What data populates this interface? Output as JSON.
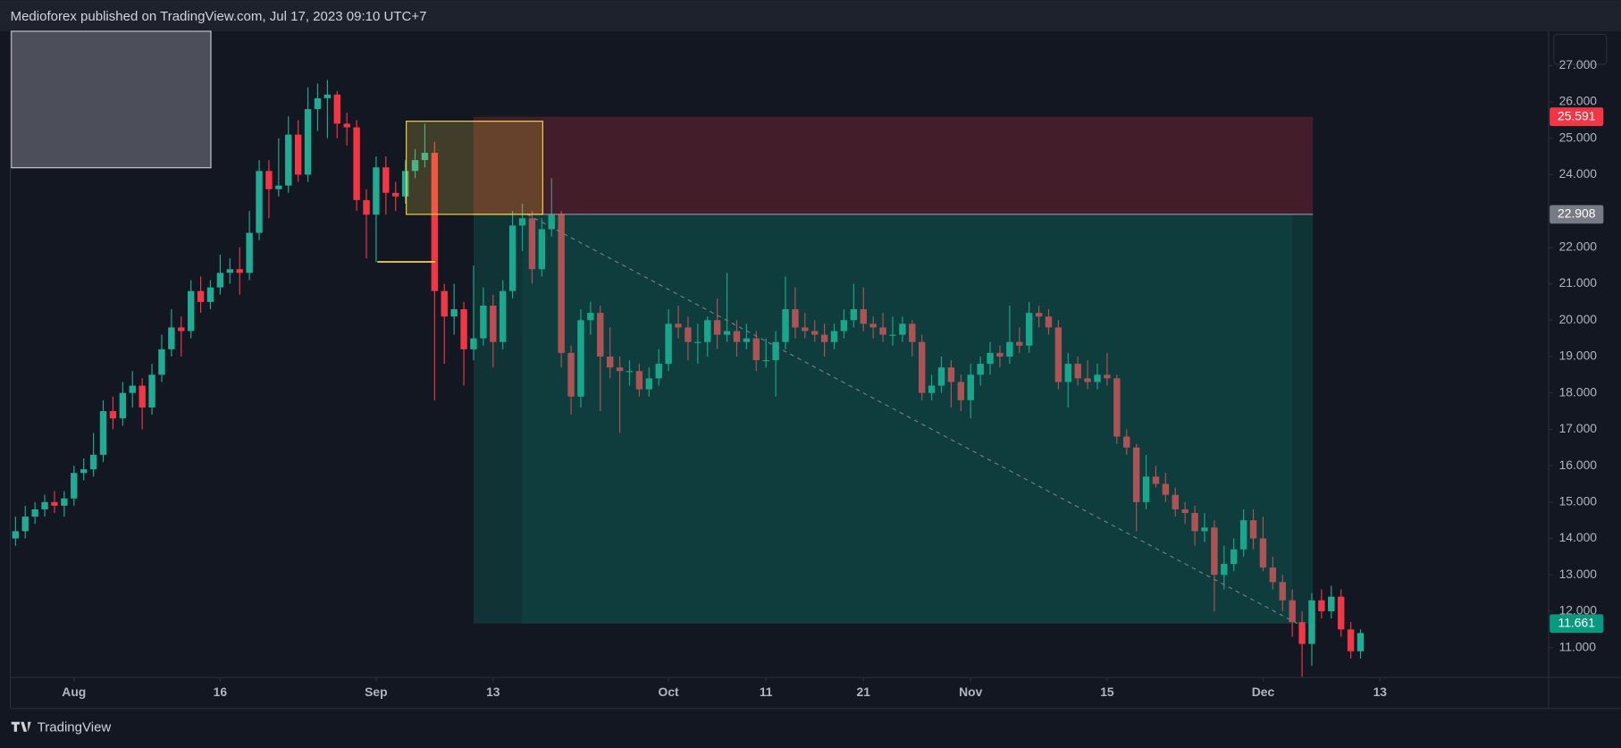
{
  "chart_data": {
    "type": "candlestick",
    "title": "Medioforex published on TradingView.com, Jul 17, 2023 09:10 UTC+7",
    "brand": "TradingView",
    "up_color": "#22ab94",
    "down_color": "#f23645",
    "xlim": [
      -0.53,
      157.3
    ],
    "xticks": [
      {
        "value": 6,
        "label": "Aug"
      },
      {
        "value": 21,
        "label": "16"
      },
      {
        "value": 37,
        "label": "Sep"
      },
      {
        "value": 49,
        "label": "13"
      },
      {
        "value": 67,
        "label": "Oct"
      },
      {
        "value": 77,
        "label": "11"
      },
      {
        "value": 87,
        "label": "21"
      },
      {
        "value": 98,
        "label": "Nov"
      },
      {
        "value": 112,
        "label": "15"
      },
      {
        "value": 128,
        "label": "Dec"
      },
      {
        "value": 140,
        "label": "13"
      }
    ],
    "ylim": [
      10.18,
      27.94
    ],
    "yticks": [
      {
        "value": 11,
        "label": "11.000"
      },
      {
        "value": 12,
        "label": "12.000"
      },
      {
        "value": 13,
        "label": "13.000"
      },
      {
        "value": 14,
        "label": "14.000"
      },
      {
        "value": 15,
        "label": "15.000"
      },
      {
        "value": 16,
        "label": "16.000"
      },
      {
        "value": 17,
        "label": "17.000"
      },
      {
        "value": 18,
        "label": "18.000"
      },
      {
        "value": 19,
        "label": "19.000"
      },
      {
        "value": 20,
        "label": "20.000"
      },
      {
        "value": 21,
        "label": "21.000"
      },
      {
        "value": 22,
        "label": "22.000"
      },
      {
        "value": 23,
        "label": "23.000"
      },
      {
        "value": 24,
        "label": "24.000"
      },
      {
        "value": 25,
        "label": "25.000"
      },
      {
        "value": 26,
        "label": "26.000"
      },
      {
        "value": 27,
        "label": "27.000"
      }
    ],
    "position": {
      "stop": 25.591,
      "entry": 22.908,
      "target": 11.661
    },
    "ohlc": [
      [
        14.0,
        14.6,
        13.8,
        14.2
      ],
      [
        14.2,
        14.9,
        14.0,
        14.6
      ],
      [
        14.6,
        15.0,
        14.4,
        14.8
      ],
      [
        14.8,
        15.2,
        14.6,
        15.0
      ],
      [
        15.0,
        15.3,
        14.7,
        14.9
      ],
      [
        14.9,
        15.3,
        14.6,
        15.1
      ],
      [
        15.1,
        16.0,
        14.9,
        15.8
      ],
      [
        15.8,
        16.2,
        15.6,
        15.9
      ],
      [
        15.9,
        16.9,
        15.7,
        16.3
      ],
      [
        16.3,
        17.8,
        16.1,
        17.5
      ],
      [
        17.5,
        17.9,
        17.0,
        17.3
      ],
      [
        17.3,
        18.3,
        17.1,
        18.0
      ],
      [
        18.0,
        18.6,
        17.6,
        18.2
      ],
      [
        18.2,
        18.4,
        17.0,
        17.6
      ],
      [
        17.6,
        18.8,
        17.4,
        18.5
      ],
      [
        18.5,
        19.6,
        18.3,
        19.2
      ],
      [
        19.2,
        20.3,
        19.0,
        19.8
      ],
      [
        19.8,
        20.1,
        19.0,
        19.7
      ],
      [
        19.7,
        21.1,
        19.5,
        20.8
      ],
      [
        20.8,
        21.2,
        20.2,
        20.5
      ],
      [
        20.5,
        21.1,
        20.3,
        20.9
      ],
      [
        20.9,
        21.8,
        20.7,
        21.3
      ],
      [
        21.3,
        21.7,
        21.0,
        21.4
      ],
      [
        21.4,
        22.0,
        20.7,
        21.3
      ],
      [
        21.3,
        23.0,
        21.1,
        22.4
      ],
      [
        22.4,
        24.4,
        22.2,
        24.1
      ],
      [
        24.1,
        24.4,
        22.8,
        23.6
      ],
      [
        23.6,
        25.0,
        23.4,
        23.7
      ],
      [
        23.7,
        25.6,
        23.5,
        25.1
      ],
      [
        25.1,
        25.5,
        23.8,
        24.0
      ],
      [
        24.0,
        26.4,
        23.8,
        25.8
      ],
      [
        25.8,
        26.5,
        25.2,
        26.1
      ],
      [
        26.1,
        26.6,
        25.0,
        26.2
      ],
      [
        26.2,
        26.3,
        25.0,
        25.4
      ],
      [
        25.4,
        25.7,
        24.8,
        25.3
      ],
      [
        25.3,
        25.5,
        23.0,
        23.3
      ],
      [
        23.3,
        23.6,
        21.7,
        22.9
      ],
      [
        22.9,
        24.5,
        21.6,
        24.2
      ],
      [
        24.2,
        24.5,
        22.9,
        23.5
      ],
      [
        23.5,
        23.8,
        23.0,
        23.4
      ],
      [
        23.4,
        24.4,
        23.2,
        24.1
      ],
      [
        24.1,
        24.7,
        23.9,
        24.4
      ],
      [
        24.4,
        25.4,
        24.2,
        24.6
      ],
      [
        24.6,
        24.9,
        17.8,
        20.8
      ],
      [
        20.8,
        21.0,
        18.8,
        20.1
      ],
      [
        20.1,
        21.0,
        19.6,
        20.3
      ],
      [
        20.3,
        20.5,
        18.2,
        19.2
      ],
      [
        19.2,
        21.5,
        18.9,
        19.5
      ],
      [
        19.5,
        20.9,
        19.3,
        20.4
      ],
      [
        20.4,
        20.7,
        18.7,
        19.4
      ],
      [
        19.4,
        21.1,
        19.2,
        20.8
      ],
      [
        20.8,
        23.0,
        20.6,
        22.6
      ],
      [
        22.6,
        23.2,
        21.9,
        22.8
      ],
      [
        22.8,
        23.0,
        21.0,
        21.4
      ],
      [
        21.4,
        22.8,
        21.2,
        22.5
      ],
      [
        22.5,
        23.9,
        22.3,
        22.9
      ],
      [
        22.9,
        23.0,
        18.7,
        19.1
      ],
      [
        19.1,
        19.3,
        17.4,
        17.9
      ],
      [
        17.9,
        20.3,
        17.6,
        20.0
      ],
      [
        20.0,
        20.5,
        19.6,
        20.2
      ],
      [
        20.2,
        20.4,
        17.5,
        19.0
      ],
      [
        19.0,
        19.8,
        18.4,
        18.7
      ],
      [
        18.7,
        19.0,
        16.9,
        18.6
      ],
      [
        18.6,
        18.9,
        18.2,
        18.6
      ],
      [
        18.6,
        18.8,
        17.9,
        18.1
      ],
      [
        18.1,
        18.7,
        17.9,
        18.4
      ],
      [
        18.4,
        19.2,
        18.2,
        18.8
      ],
      [
        18.8,
        20.3,
        18.6,
        19.9
      ],
      [
        19.9,
        20.4,
        19.5,
        19.8
      ],
      [
        19.8,
        20.1,
        18.9,
        19.4
      ],
      [
        19.4,
        19.9,
        18.8,
        19.4
      ],
      [
        19.4,
        20.1,
        19.0,
        20.0
      ],
      [
        20.0,
        20.6,
        19.2,
        19.6
      ],
      [
        19.6,
        21.3,
        19.4,
        19.7
      ],
      [
        19.7,
        20.0,
        19.0,
        19.4
      ],
      [
        19.4,
        19.9,
        19.2,
        19.5
      ],
      [
        19.5,
        19.7,
        18.6,
        18.9
      ],
      [
        18.9,
        19.5,
        18.7,
        18.9
      ],
      [
        18.9,
        19.7,
        17.9,
        19.4
      ],
      [
        19.4,
        21.2,
        19.2,
        20.3
      ],
      [
        20.3,
        20.9,
        19.5,
        19.8
      ],
      [
        19.8,
        20.2,
        19.5,
        19.7
      ],
      [
        19.7,
        20.0,
        19.4,
        19.6
      ],
      [
        19.6,
        19.9,
        19.0,
        19.4
      ],
      [
        19.4,
        19.9,
        19.2,
        19.7
      ],
      [
        19.7,
        20.3,
        19.5,
        20.0
      ],
      [
        20.0,
        21.0,
        19.8,
        20.3
      ],
      [
        20.3,
        20.9,
        19.7,
        19.9
      ],
      [
        19.9,
        20.1,
        19.5,
        19.8
      ],
      [
        19.8,
        20.2,
        19.4,
        19.6
      ],
      [
        19.6,
        20.1,
        19.3,
        19.6
      ],
      [
        19.6,
        20.1,
        19.4,
        19.9
      ],
      [
        19.9,
        20.0,
        19.0,
        19.4
      ],
      [
        19.4,
        19.6,
        17.8,
        18.0
      ],
      [
        18.0,
        18.5,
        17.8,
        18.2
      ],
      [
        18.2,
        19.0,
        18.0,
        18.7
      ],
      [
        18.7,
        18.9,
        17.6,
        18.3
      ],
      [
        18.3,
        18.5,
        17.5,
        17.8
      ],
      [
        17.8,
        18.8,
        17.3,
        18.5
      ],
      [
        18.5,
        19.0,
        18.2,
        18.8
      ],
      [
        18.8,
        19.4,
        18.5,
        19.1
      ],
      [
        19.1,
        19.3,
        18.7,
        19.0
      ],
      [
        19.0,
        20.4,
        18.8,
        19.4
      ],
      [
        19.4,
        19.8,
        19.1,
        19.3
      ],
      [
        19.3,
        20.5,
        19.1,
        20.2
      ],
      [
        20.2,
        20.4,
        19.8,
        20.1
      ],
      [
        20.1,
        20.3,
        19.6,
        19.8
      ],
      [
        19.8,
        20.0,
        18.1,
        18.3
      ],
      [
        18.3,
        19.1,
        17.6,
        18.8
      ],
      [
        18.8,
        19.0,
        18.2,
        18.4
      ],
      [
        18.4,
        18.9,
        18.1,
        18.3
      ],
      [
        18.3,
        18.8,
        18.1,
        18.5
      ],
      [
        18.5,
        19.1,
        18.2,
        18.4
      ],
      [
        18.4,
        18.5,
        16.6,
        16.8
      ],
      [
        16.8,
        17.0,
        16.3,
        16.5
      ],
      [
        16.5,
        16.6,
        14.2,
        15.0
      ],
      [
        15.0,
        16.3,
        14.8,
        15.7
      ],
      [
        15.7,
        16.0,
        15.4,
        15.5
      ],
      [
        15.5,
        15.8,
        15.0,
        15.2
      ],
      [
        15.2,
        15.4,
        14.6,
        14.8
      ],
      [
        14.8,
        15.0,
        14.4,
        14.7
      ],
      [
        14.7,
        14.9,
        13.8,
        14.2
      ],
      [
        14.2,
        14.7,
        13.9,
        14.3
      ],
      [
        14.3,
        14.5,
        12.0,
        13.0
      ],
      [
        13.0,
        13.8,
        12.6,
        13.3
      ],
      [
        13.3,
        14.0,
        13.1,
        13.7
      ],
      [
        13.7,
        14.8,
        13.5,
        14.5
      ],
      [
        14.5,
        14.8,
        13.7,
        14.0
      ],
      [
        14.0,
        14.6,
        13.1,
        13.2
      ],
      [
        13.2,
        13.5,
        12.6,
        12.8
      ],
      [
        12.8,
        13.0,
        12.0,
        12.3
      ],
      [
        12.3,
        12.6,
        11.3,
        11.7
      ],
      [
        11.7,
        12.0,
        10.2,
        11.1
      ],
      [
        11.1,
        12.5,
        10.5,
        12.3
      ],
      [
        12.3,
        12.6,
        11.8,
        12.0
      ],
      [
        12.0,
        12.7,
        11.8,
        12.4
      ],
      [
        12.4,
        12.6,
        11.3,
        11.5
      ],
      [
        11.5,
        11.7,
        10.7,
        10.9
      ],
      [
        10.9,
        11.5,
        10.7,
        11.4
      ]
    ]
  }
}
